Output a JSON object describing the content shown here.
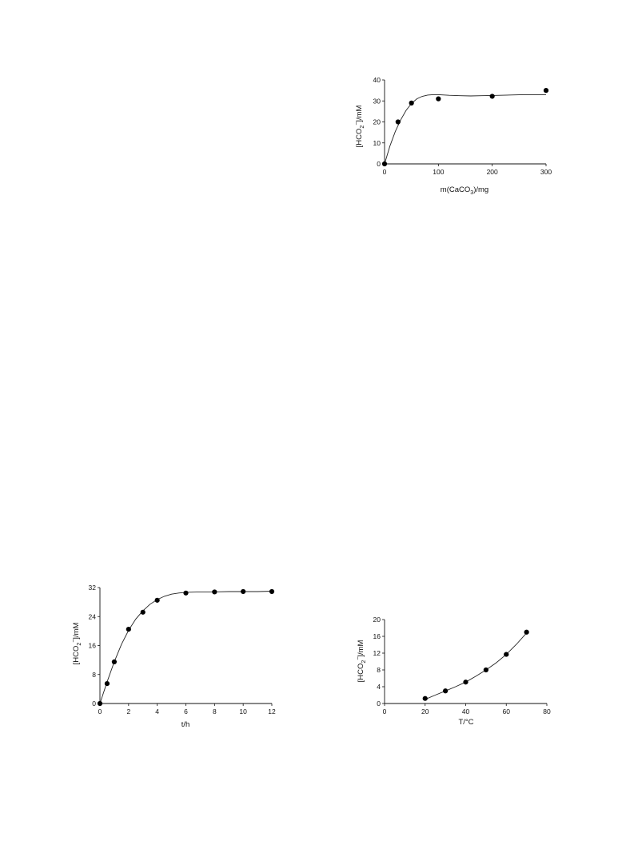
{
  "chart_data": [
    {
      "type": "scatter",
      "xlabel_main": "m(CaCO",
      "xlabel_sub": "3",
      "xlabel_tail": ")/mg",
      "ylabel_main": "[HCO",
      "ylabel_sub": "2",
      "ylabel_sup": "−",
      "ylabel_tail": "]/mM",
      "xlim": [
        0,
        300
      ],
      "ylim": [
        0,
        40
      ],
      "xticks": [
        0,
        100,
        200,
        300
      ],
      "yticks": [
        0,
        10,
        20,
        30,
        40
      ],
      "x": [
        0,
        25,
        50,
        100,
        200,
        300
      ],
      "y": [
        0,
        20,
        29,
        31,
        32.2,
        35
      ],
      "fit_curve": {
        "x": [
          0,
          10,
          20,
          30,
          40,
          50,
          60,
          70,
          80,
          90,
          100,
          120,
          140,
          160,
          180,
          200,
          250,
          300
        ],
        "y": [
          0,
          8.5,
          15.5,
          21,
          25.5,
          28.8,
          31,
          32.2,
          32.8,
          33.0,
          33.0,
          32.7,
          32.5,
          32.4,
          32.5,
          32.6,
          32.9,
          33.0
        ]
      },
      "grid": false,
      "legend": "none"
    },
    {
      "type": "scatter",
      "xlabel": "t/h",
      "ylabel_main": "[HCO",
      "ylabel_sub": "2",
      "ylabel_sup": "−",
      "ylabel_tail": "]/mM",
      "xlim": [
        0,
        12
      ],
      "ylim": [
        0,
        32
      ],
      "xticks": [
        0,
        2,
        4,
        6,
        8,
        10,
        12
      ],
      "yticks": [
        0,
        8,
        16,
        24,
        32
      ],
      "x": [
        0,
        0.5,
        1,
        2,
        3,
        4,
        6,
        8,
        10,
        12
      ],
      "y": [
        0,
        5.5,
        11.5,
        20.5,
        25.2,
        28.5,
        30.5,
        30.8,
        30.9,
        30.9
      ],
      "fit_curve": {
        "x": [
          0,
          0.5,
          1,
          1.5,
          2,
          2.5,
          3,
          3.5,
          4,
          4.5,
          5,
          5.5,
          6,
          7,
          8,
          9,
          10,
          11,
          12
        ],
        "y": [
          0,
          6,
          11.5,
          16.3,
          20.2,
          23.3,
          25.6,
          27.4,
          28.7,
          29.6,
          30.2,
          30.5,
          30.7,
          30.8,
          30.8,
          30.9,
          30.9,
          30.9,
          31.0
        ]
      },
      "grid": false,
      "legend": "none"
    },
    {
      "type": "scatter",
      "xlabel": "T/°C",
      "ylabel_main": "[HCO",
      "ylabel_sub": "2",
      "ylabel_sup": "−",
      "ylabel_tail": "]/mM",
      "xlim": [
        0,
        80
      ],
      "ylim": [
        0,
        20
      ],
      "xticks": [
        0,
        20,
        40,
        60,
        80
      ],
      "yticks": [
        0,
        4,
        8,
        12,
        16,
        20
      ],
      "x": [
        20,
        30,
        40,
        50,
        60,
        70
      ],
      "y": [
        1.2,
        3.0,
        5.1,
        8.0,
        11.7,
        17.0
      ],
      "fit_curve": {
        "x": [
          20,
          25,
          30,
          35,
          40,
          45,
          50,
          55,
          60,
          65,
          70
        ],
        "y": [
          1.0,
          2.0,
          3.0,
          4.0,
          5.1,
          6.5,
          8.0,
          9.7,
          11.7,
          14.1,
          16.8
        ]
      },
      "grid": false,
      "legend": "none"
    }
  ]
}
